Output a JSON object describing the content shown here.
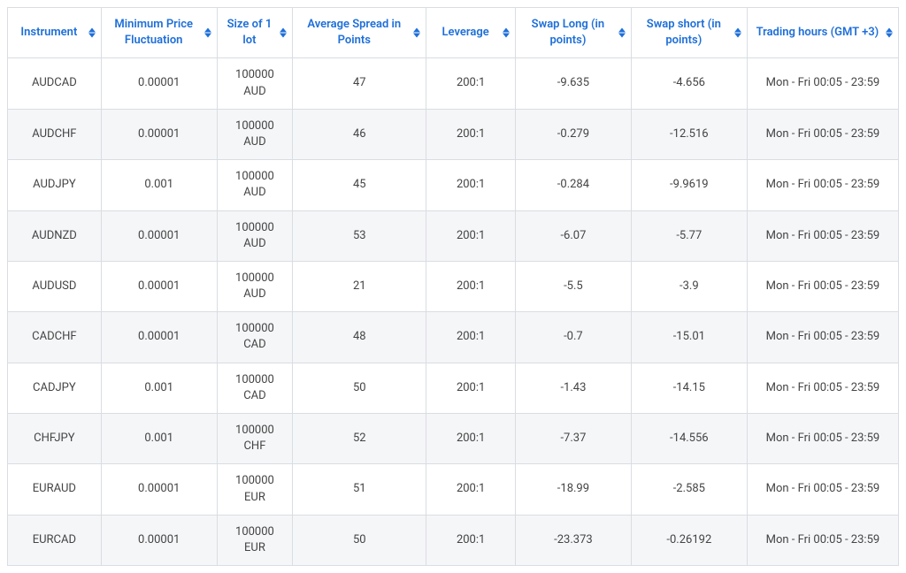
{
  "table": {
    "headerColor": "#1e6fd9",
    "sortIconColor": "#1e6fd9",
    "borderColor": "#d9dde2",
    "rowAltBg": "#f5f6f8",
    "rowBg": "#ffffff",
    "textColor": "#444444",
    "fontSize": 13,
    "columns": [
      {
        "key": "instrument",
        "label": "Instrument",
        "widthPct": 10.5
      },
      {
        "key": "minfluct",
        "label": "Minimum Price Fluctuation",
        "widthPct": 13
      },
      {
        "key": "lotsize",
        "label": "Size of 1 lot",
        "widthPct": 8.5
      },
      {
        "key": "avgspread",
        "label": "Average Spread in Points",
        "widthPct": 15
      },
      {
        "key": "leverage",
        "label": "Leverage",
        "widthPct": 10
      },
      {
        "key": "swaplong",
        "label": "Swap Long (in points)",
        "widthPct": 13
      },
      {
        "key": "swapshort",
        "label": "Swap short (in points)",
        "widthPct": 13
      },
      {
        "key": "hours",
        "label": "Trading hours (GMT +3)",
        "widthPct": 17
      }
    ],
    "rows": [
      {
        "instrument": "AUDCAD",
        "minfluct": "0.00001",
        "lotsize": "100000 AUD",
        "avgspread": "47",
        "leverage": "200:1",
        "swaplong": "-9.635",
        "swapshort": "-4.656",
        "hours": "Mon - Fri 00:05 - 23:59"
      },
      {
        "instrument": "AUDCHF",
        "minfluct": "0.00001",
        "lotsize": "100000 AUD",
        "avgspread": "46",
        "leverage": "200:1",
        "swaplong": "-0.279",
        "swapshort": "-12.516",
        "hours": "Mon - Fri 00:05 - 23:59"
      },
      {
        "instrument": "AUDJPY",
        "minfluct": "0.001",
        "lotsize": "100000 AUD",
        "avgspread": "45",
        "leverage": "200:1",
        "swaplong": "-0.284",
        "swapshort": "-9.9619",
        "hours": "Mon - Fri 00:05 - 23:59"
      },
      {
        "instrument": "AUDNZD",
        "minfluct": "0.00001",
        "lotsize": "100000 AUD",
        "avgspread": "53",
        "leverage": "200:1",
        "swaplong": "-6.07",
        "swapshort": "-5.77",
        "hours": "Mon - Fri 00:05 - 23:59"
      },
      {
        "instrument": "AUDUSD",
        "minfluct": "0.00001",
        "lotsize": "100000 AUD",
        "avgspread": "21",
        "leverage": "200:1",
        "swaplong": "-5.5",
        "swapshort": "-3.9",
        "hours": "Mon - Fri 00:05 - 23:59"
      },
      {
        "instrument": "CADCHF",
        "minfluct": "0.00001",
        "lotsize": "100000 CAD",
        "avgspread": "48",
        "leverage": "200:1",
        "swaplong": "-0.7",
        "swapshort": "-15.01",
        "hours": "Mon - Fri 00:05 - 23:59"
      },
      {
        "instrument": "CADJPY",
        "minfluct": "0.001",
        "lotsize": "100000 CAD",
        "avgspread": "50",
        "leverage": "200:1",
        "swaplong": "-1.43",
        "swapshort": "-14.15",
        "hours": "Mon - Fri 00:05 - 23:59"
      },
      {
        "instrument": "CHFJPY",
        "minfluct": "0.001",
        "lotsize": "100000 CHF",
        "avgspread": "52",
        "leverage": "200:1",
        "swaplong": "-7.37",
        "swapshort": "-14.556",
        "hours": "Mon - Fri 00:05 - 23:59"
      },
      {
        "instrument": "EURAUD",
        "minfluct": "0.00001",
        "lotsize": "100000 EUR",
        "avgspread": "51",
        "leverage": "200:1",
        "swaplong": "-18.99",
        "swapshort": "-2.585",
        "hours": "Mon - Fri 00:05 - 23:59"
      },
      {
        "instrument": "EURCAD",
        "minfluct": "0.00001",
        "lotsize": "100000 EUR",
        "avgspread": "50",
        "leverage": "200:1",
        "swaplong": "-23.373",
        "swapshort": "-0.26192",
        "hours": "Mon - Fri 00:05 - 23:59"
      }
    ]
  }
}
